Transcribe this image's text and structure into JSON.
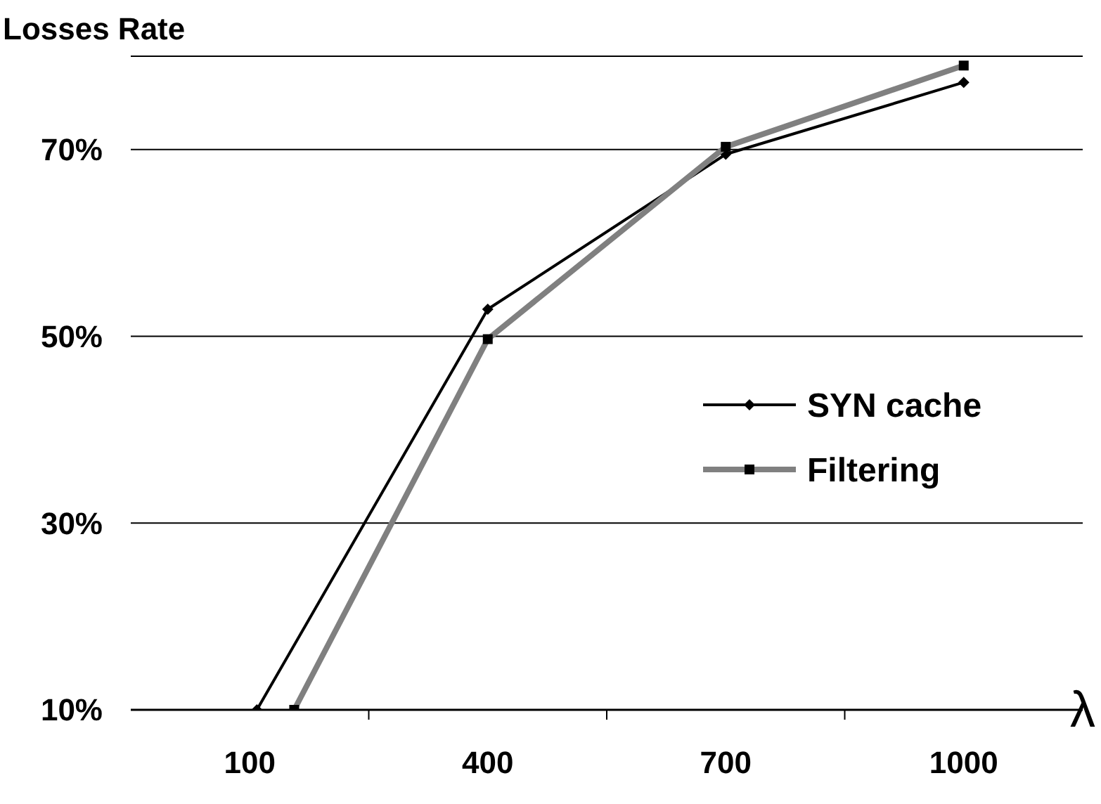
{
  "chart_data": {
    "type": "line",
    "ylabel": "Losses Rate",
    "xlabel": "λ",
    "xlim": [
      -50,
      1150
    ],
    "xticks": [
      100,
      {
        "value": 250,
        "label": null
      },
      400,
      {
        "value": 550,
        "label": null
      },
      700,
      {
        "value": 850,
        "label": null
      },
      1000
    ],
    "ylim": [
      10,
      80
    ],
    "yticks": [
      {
        "value": 10,
        "label": "10%"
      },
      {
        "value": 30,
        "label": "30%"
      },
      {
        "value": 50,
        "label": "50%"
      },
      {
        "value": 70,
        "label": "70%"
      }
    ],
    "grid": "y",
    "legend": "right",
    "series": [
      {
        "name": "SYN cache",
        "color": "#000000",
        "marker": "diamond",
        "x": [
          109,
          400,
          700,
          1000
        ],
        "values": [
          10,
          52.9,
          69.5,
          77.2
        ]
      },
      {
        "name": "Filtering",
        "color": "#808080",
        "marker": "square",
        "x": [
          156,
          400,
          700,
          1000
        ],
        "values": [
          10,
          49.7,
          70.3,
          79.0
        ]
      }
    ]
  }
}
